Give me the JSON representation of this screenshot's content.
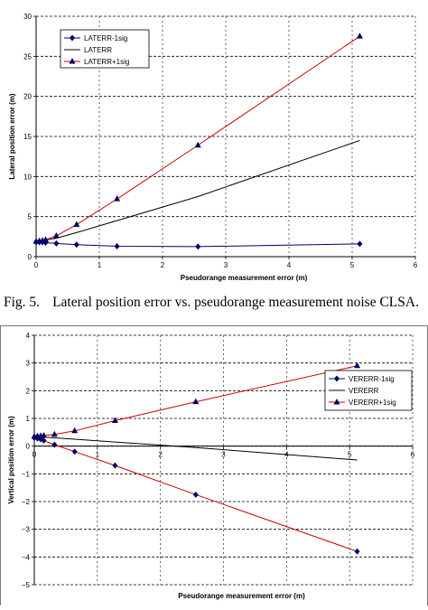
{
  "figure_caption": {
    "number": "Fig. 5.",
    "text": "Lateral position error vs. pseudorange measurement noise CLSA."
  },
  "colors": {
    "minus_series": "#000066",
    "mean_series": "#000000",
    "plus_series": "#CC0000",
    "marker_fill": "#000066",
    "grid": "#000000"
  },
  "chart_data": [
    {
      "type": "line",
      "xlabel": "Pseudorange measurement error (m)",
      "ylabel": "Lateral position error (m)",
      "xlim": [
        0,
        6
      ],
      "ylim": [
        0,
        30
      ],
      "xticks": [
        0,
        1,
        2,
        3,
        4,
        5,
        6
      ],
      "yticks": [
        0,
        5,
        10,
        15,
        20,
        25,
        30
      ],
      "grid": "horizontal-dashed",
      "legend_position": "top-left",
      "series": [
        {
          "name": "LATERR-1sig",
          "style": "line-diamond",
          "x": [
            0,
            0.05,
            0.1,
            0.15,
            0.32,
            0.64,
            1.28,
            2.56,
            5.12
          ],
          "y": [
            1.8,
            1.8,
            1.8,
            1.75,
            1.65,
            1.5,
            1.3,
            1.25,
            1.6
          ]
        },
        {
          "name": "LATERR",
          "style": "line",
          "x": [
            0,
            0.32,
            0.64,
            1.28,
            2.56,
            5.12
          ],
          "y": [
            1.9,
            2.3,
            3.0,
            4.5,
            7.5,
            14.5
          ]
        },
        {
          "name": "LATERR+1sig",
          "style": "line-triangle",
          "x": [
            0,
            0.05,
            0.1,
            0.15,
            0.32,
            0.64,
            1.28,
            2.56,
            5.12
          ],
          "y": [
            1.9,
            1.95,
            2.0,
            2.1,
            2.6,
            4.0,
            7.2,
            13.9,
            27.5
          ]
        }
      ]
    },
    {
      "type": "line",
      "xlabel": "Pseudorange measurement error (m)",
      "ylabel": "Vertical position error (m)",
      "xlim": [
        0,
        6
      ],
      "ylim": [
        -5,
        4
      ],
      "xticks": [
        0,
        1,
        2,
        3,
        4,
        5,
        6
      ],
      "yticks": [
        -5,
        -4,
        -3,
        -2,
        -1,
        0,
        1,
        2,
        3,
        4
      ],
      "grid": "horizontal-dashed",
      "legend_position": "top-right",
      "series": [
        {
          "name": "VERERR-1sig",
          "style": "line-diamond",
          "x": [
            0,
            0.05,
            0.1,
            0.15,
            0.32,
            0.64,
            1.28,
            2.56,
            5.12
          ],
          "y": [
            0.3,
            0.28,
            0.25,
            0.2,
            0.05,
            -0.2,
            -0.7,
            -1.75,
            -3.8
          ]
        },
        {
          "name": "VERERR",
          "style": "line",
          "x": [
            0,
            0.32,
            0.64,
            1.28,
            2.56,
            5.12
          ],
          "y": [
            0.35,
            0.3,
            0.25,
            0.15,
            -0.05,
            -0.5
          ]
        },
        {
          "name": "VERERR+1sig",
          "style": "line-triangle",
          "x": [
            0,
            0.05,
            0.1,
            0.15,
            0.32,
            0.64,
            1.28,
            2.56,
            5.12
          ],
          "y": [
            0.35,
            0.36,
            0.37,
            0.38,
            0.42,
            0.55,
            0.92,
            1.6,
            2.9
          ]
        }
      ]
    }
  ]
}
